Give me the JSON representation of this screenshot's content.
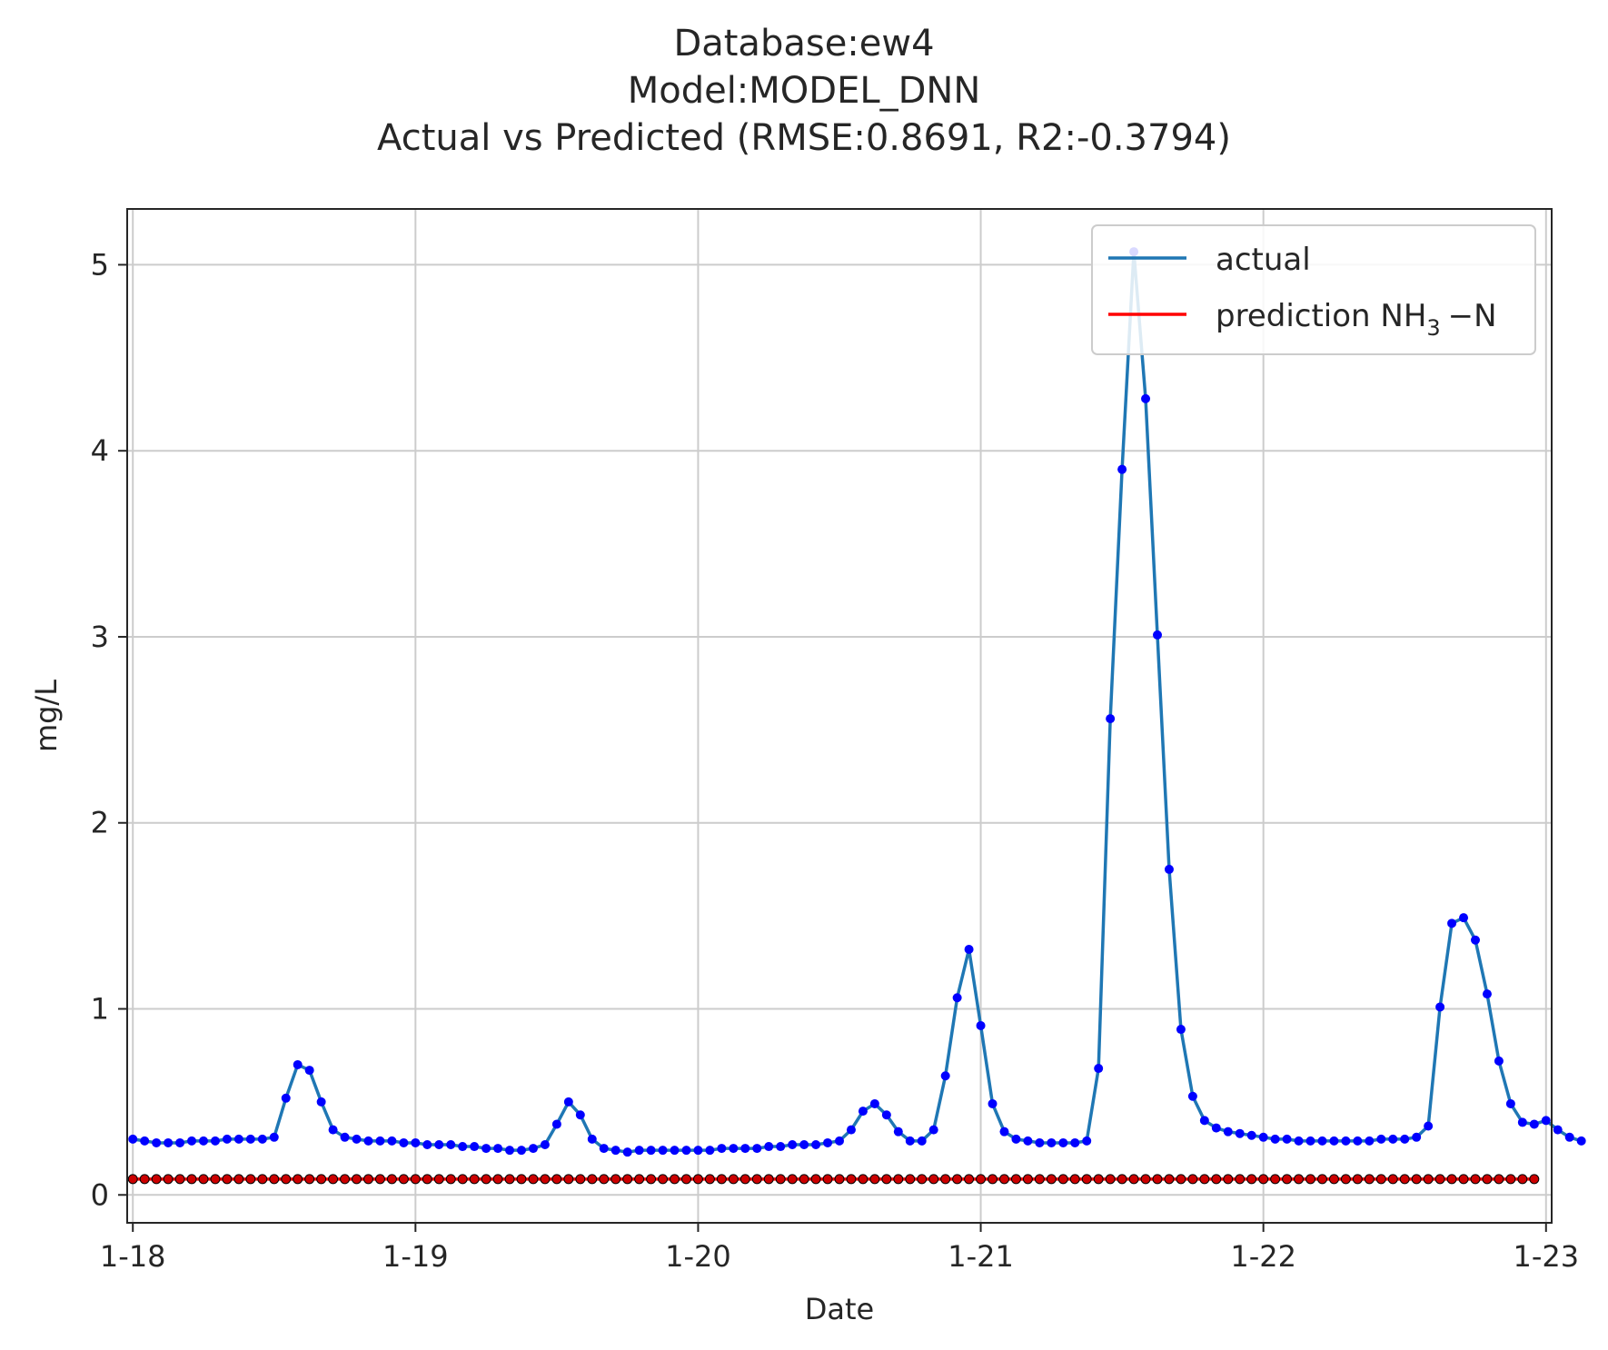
{
  "chart_data": {
    "type": "line",
    "title_lines": [
      "Database:ew4",
      "Model:MODEL_DNN",
      "Actual vs Predicted (RMSE:0.8691, R2:-0.3794)"
    ],
    "xlabel": "Date",
    "ylabel": "mg/L",
    "x_ticks": [
      "1-18",
      "1-19",
      "1-20",
      "1-21",
      "1-22",
      "1-23"
    ],
    "y_ticks": [
      0,
      1,
      2,
      3,
      4,
      5
    ],
    "xlim": [
      -0.02,
      5.02
    ],
    "ylim": [
      -0.15,
      5.3
    ],
    "grid": true,
    "legend_position": "top-right",
    "legend": {
      "actual_label": "actual",
      "prediction_label_main": "prediction NH",
      "prediction_label_sub": "3",
      "prediction_label_tail": "−N"
    },
    "colors": {
      "actual_line": "#1f77b4",
      "actual_marker": "#0000ff",
      "prediction_line": "#ff0000",
      "prediction_marker": "#cc0000",
      "grid": "#cccccc",
      "axes": "#262626"
    },
    "step_days": 0.04166667,
    "series": [
      {
        "name": "actual",
        "values": [
          0.3,
          0.29,
          0.28,
          0.28,
          0.28,
          0.29,
          0.29,
          0.29,
          0.3,
          0.3,
          0.3,
          0.3,
          0.31,
          0.52,
          0.7,
          0.67,
          0.5,
          0.35,
          0.31,
          0.3,
          0.29,
          0.29,
          0.29,
          0.28,
          0.28,
          0.27,
          0.27,
          0.27,
          0.26,
          0.26,
          0.25,
          0.25,
          0.24,
          0.24,
          0.25,
          0.27,
          0.38,
          0.5,
          0.43,
          0.3,
          0.25,
          0.24,
          0.23,
          0.24,
          0.24,
          0.24,
          0.24,
          0.24,
          0.24,
          0.24,
          0.25,
          0.25,
          0.25,
          0.25,
          0.26,
          0.26,
          0.27,
          0.27,
          0.27,
          0.28,
          0.29,
          0.35,
          0.45,
          0.49,
          0.43,
          0.34,
          0.29,
          0.29,
          0.35,
          0.64,
          1.06,
          1.32,
          0.91,
          0.49,
          0.34,
          0.3,
          0.29,
          0.28,
          0.28,
          0.28,
          0.28,
          0.29,
          0.68,
          2.56,
          3.9,
          5.07,
          4.28,
          3.01,
          1.75,
          0.89,
          0.53,
          0.4,
          0.36,
          0.34,
          0.33,
          0.32,
          0.31,
          0.3,
          0.3,
          0.29,
          0.29,
          0.29,
          0.29,
          0.29,
          0.29,
          0.29,
          0.3,
          0.3,
          0.3,
          0.31,
          0.37,
          1.01,
          1.46,
          1.49,
          1.37,
          1.08,
          0.72,
          0.49,
          0.39,
          0.38,
          0.4,
          0.35,
          0.31,
          0.29
        ]
      },
      {
        "name": "prediction NH3−N",
        "constant_value": 0.085,
        "count": 120
      }
    ]
  }
}
